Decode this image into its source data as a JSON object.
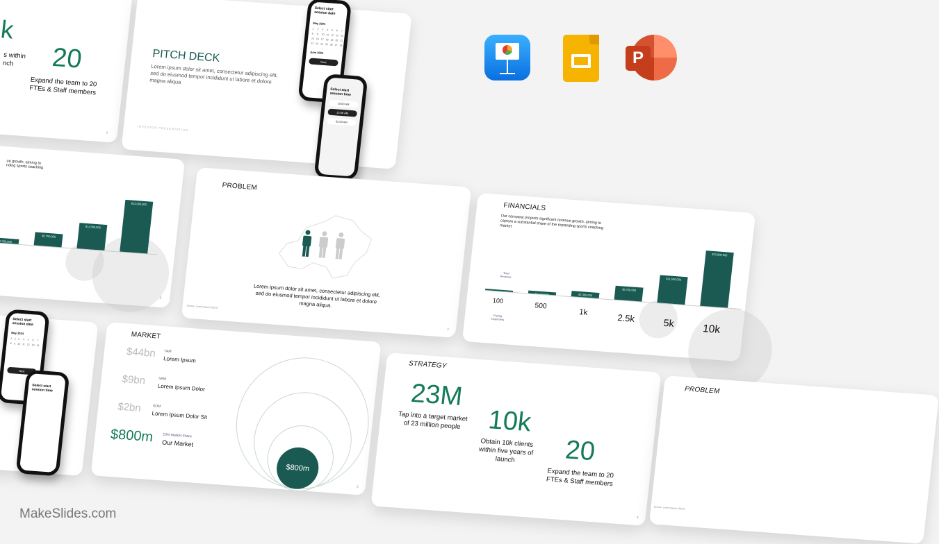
{
  "brand": "MakeSlides.com",
  "apps": [
    {
      "name": "Keynote",
      "icon": "keynote-icon",
      "color": "#1b8cf2"
    },
    {
      "name": "Google Slides",
      "icon": "google-slides-icon",
      "color": "#f6b400"
    },
    {
      "name": "PowerPoint",
      "icon": "powerpoint-icon",
      "color": "#d04423",
      "letter": "P"
    }
  ],
  "colors": {
    "accent": "#157a5a",
    "bar": "#1a5a52"
  },
  "strategy": {
    "title": "STRATEGY",
    "page": "4",
    "stats": [
      {
        "value": "23M",
        "caption": "Tap into a target market of 23 million people"
      },
      {
        "value": "10k",
        "caption": "Obtain 10k clients within five years of launch"
      },
      {
        "value": "20",
        "caption": "Expand the team to 20 FTEs & Staff members"
      }
    ]
  },
  "strategy_partial": {
    "value1": "k",
    "caption1": "s within\nnch",
    "value2": "20",
    "caption2": "Expand the team to 20 FTEs & Staff members",
    "page": "4"
  },
  "pitch": {
    "title": "PITCH DECK",
    "body": "Lorem ipsum dolor sit amet, consectetur adipiscing elit, sed do eiusmod tempor incididunt ut labore et dolore magna aliqua",
    "footer": "INVESTOR PRESENTATION",
    "phone1": {
      "title": "Select start session date",
      "month1": "May 2024",
      "month2": "June 2024",
      "button": "Next"
    },
    "phone2": {
      "title": "Select start session time",
      "slots": [
        "10:00 AM",
        "12:00 AM",
        "02:00 AM"
      ]
    }
  },
  "financials": {
    "title": "FINANCIALS",
    "body": "Our company projects significant revenue growth, aiming to capture a substantial share of the expanding sports coaching market.",
    "revenue_label": "Total Revenue",
    "customers_label": "Paying Customers",
    "customers": [
      "100",
      "500",
      "1k",
      "2.5k",
      "5k",
      "10k"
    ],
    "revenue": [
      230000,
      1150000,
      2300000,
      5750000,
      11500000,
      23000000
    ],
    "revenue_labels": [
      "$230,000",
      "$1,150,000",
      "$2,300,000",
      "$5,750,000",
      "$11,500,000",
      "$23,000,000"
    ]
  },
  "financials_partial": {
    "body": "ue growth, aiming to\nnding sports coaching",
    "page": "5"
  },
  "problem": {
    "title": "PROBLEM",
    "body": "Lorem ipsum dolor sit amet, consectetur adipiscing elit, sed do eiusmod tempor incididunt ut labore et dolore magna aliqua.",
    "source": "Source: Lorem Ipsum (2024)",
    "page": "2",
    "highlighted_people": 1,
    "total_people": 3
  },
  "problem_partial": {
    "title": "PROBLEM",
    "source": "Source: Lorem Ipsum (2024)"
  },
  "market": {
    "title": "MARKET",
    "page": "3",
    "rows": [
      {
        "value": "$44bn",
        "tag": "TAM",
        "label": "Lorem Ipsum"
      },
      {
        "value": "$9bn",
        "tag": "SAM",
        "label": "Lorem Ipsum Dolor"
      },
      {
        "value": "$2bn",
        "tag": "SOM",
        "label": "Lorem Ipsum Dolor Sit"
      },
      {
        "value": "$800m",
        "tag": "10% Market Share",
        "label": "Our Market"
      }
    ],
    "bubble": "$800m"
  },
  "phone_partial": {
    "title": "Select start session date",
    "month": "May 2024",
    "title2": "Select start session time",
    "button": "Next"
  }
}
